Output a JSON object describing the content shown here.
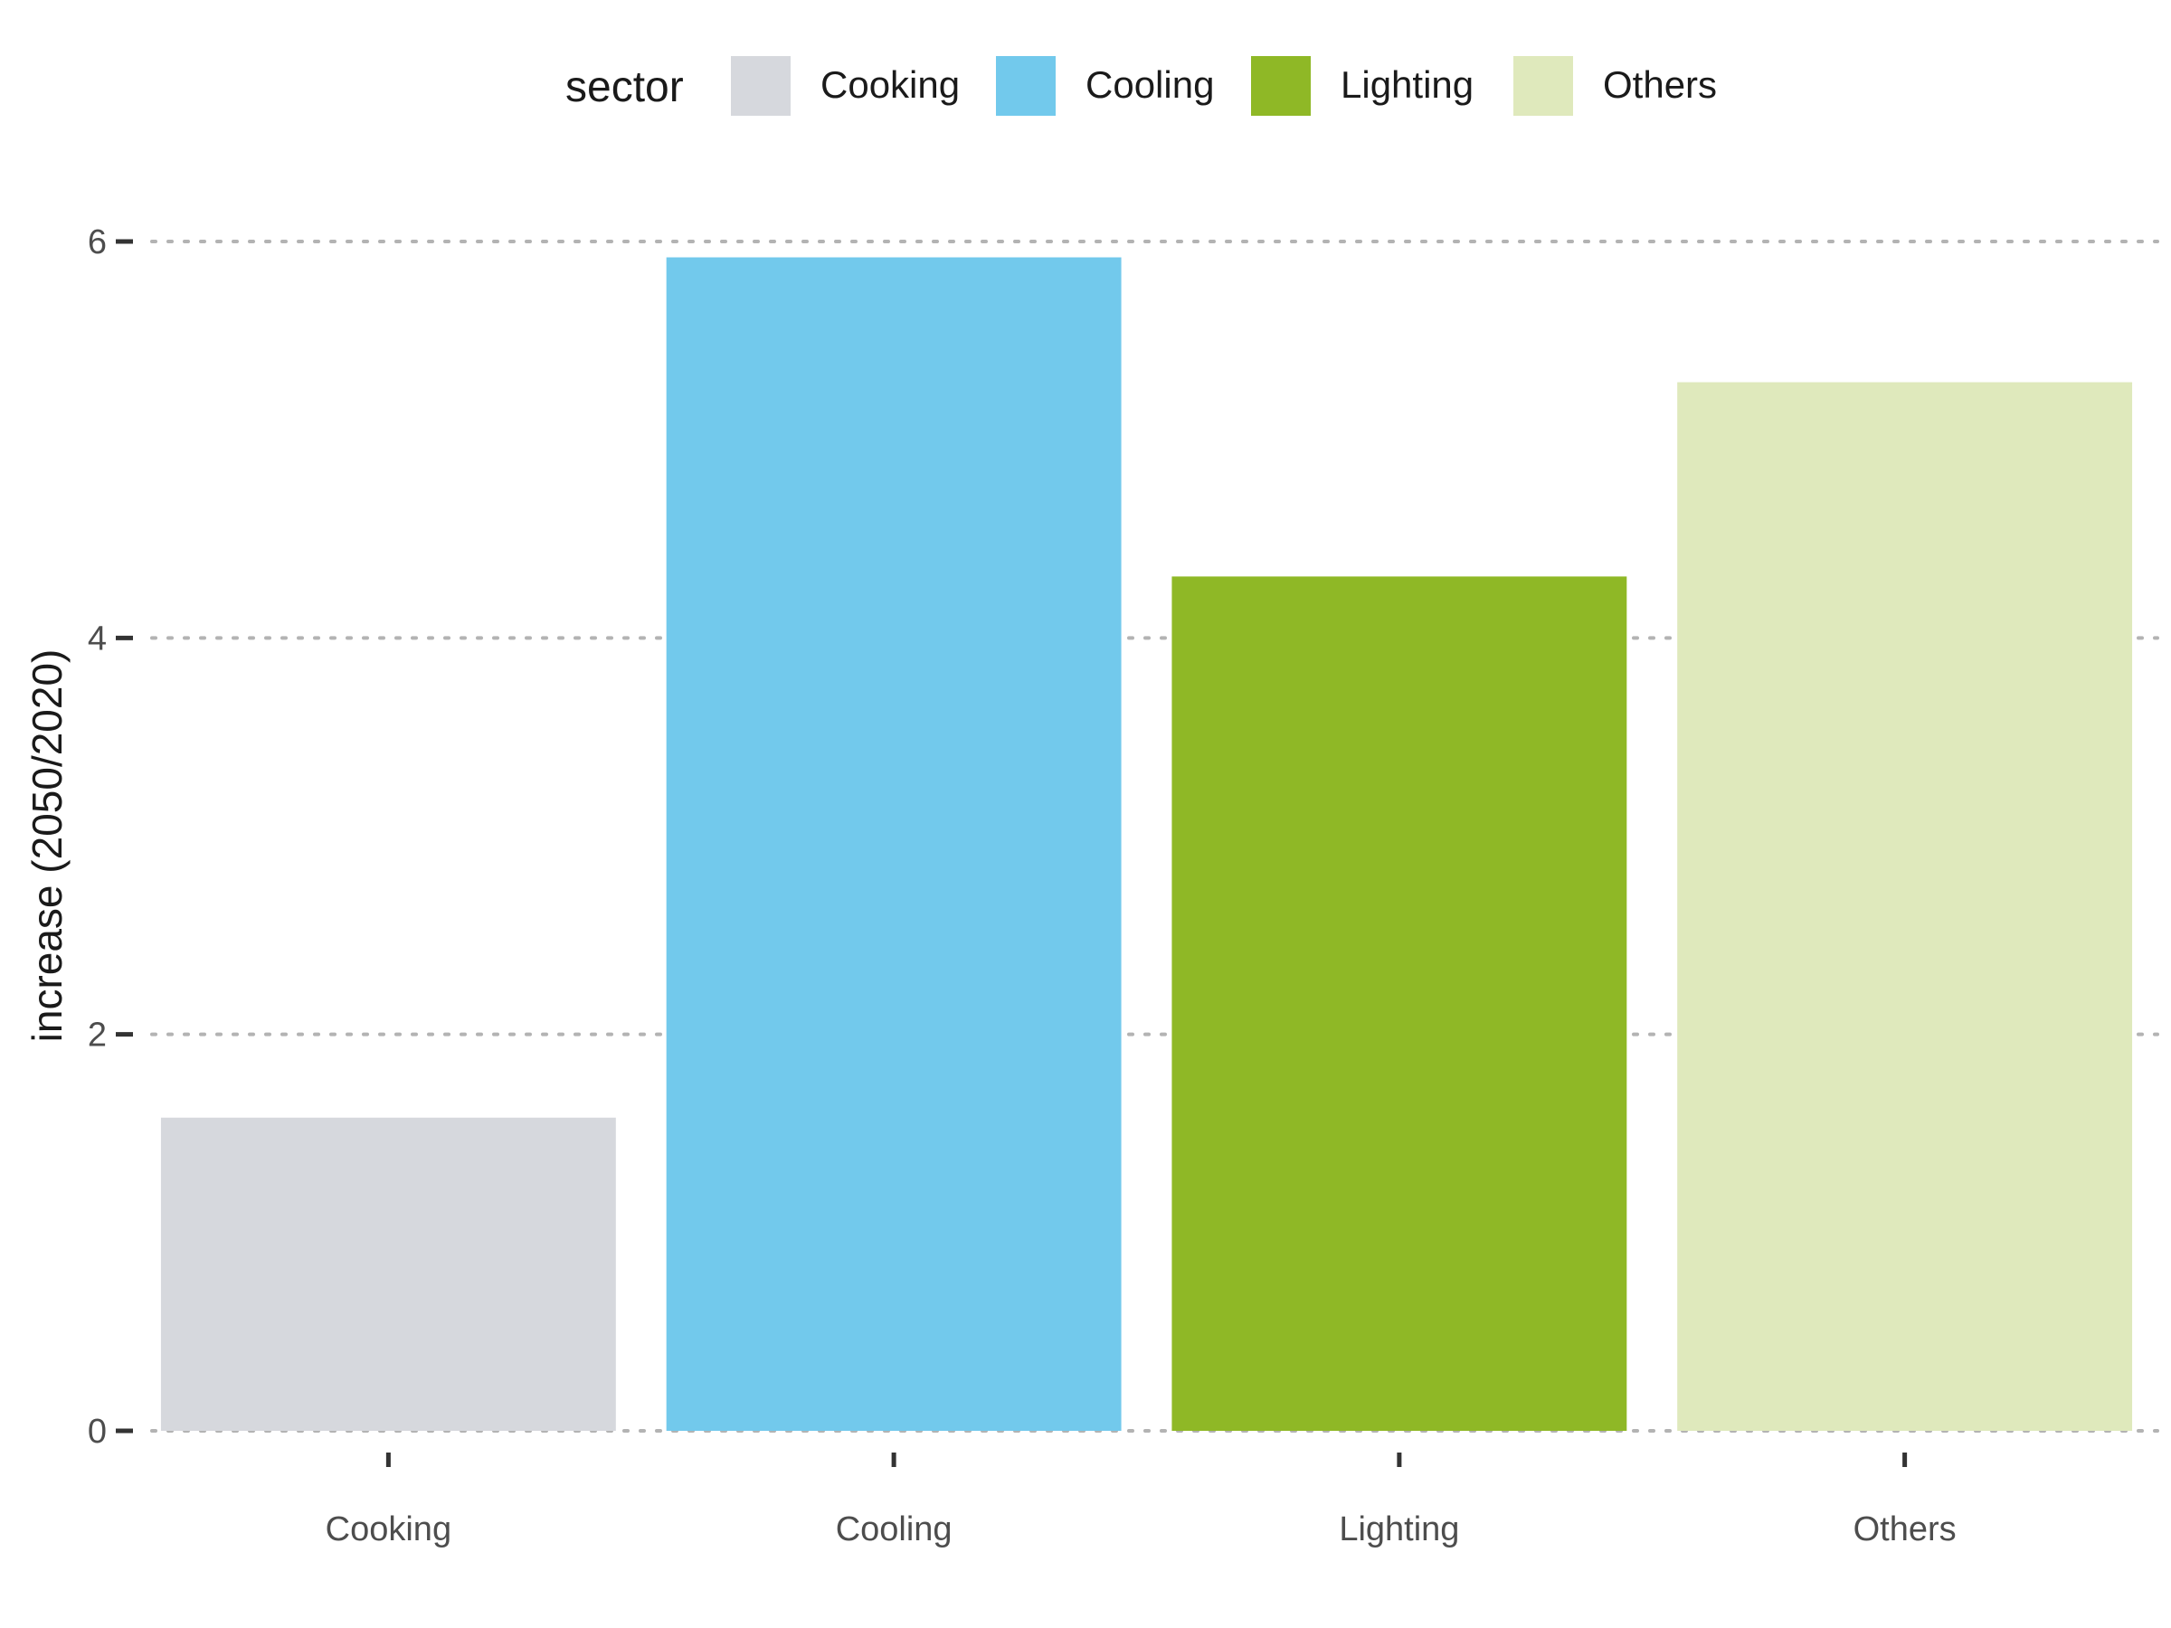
{
  "chart_data": {
    "type": "bar",
    "title": "",
    "xlabel": "",
    "ylabel": "increase (2050/2020)",
    "legend_title": "sector",
    "legend_position": "top",
    "grid": "horizontal-dotted",
    "categories": [
      "Cooking",
      "Cooling",
      "Lighting",
      "Others"
    ],
    "values": [
      1.58,
      5.92,
      4.31,
      5.29
    ],
    "colors": [
      "#d6d8dd",
      "#72c9ec",
      "#8fb826",
      "#dfe9bc"
    ],
    "ylim": [
      0,
      6.2
    ],
    "yticks": [
      0,
      2,
      4,
      6
    ]
  }
}
